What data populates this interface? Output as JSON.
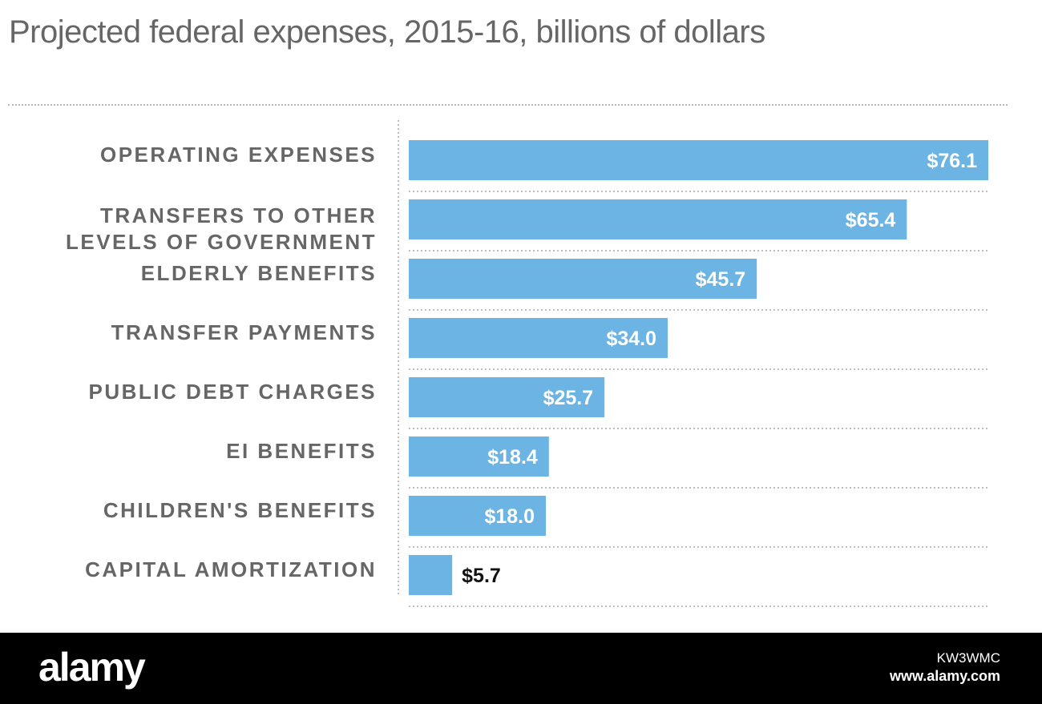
{
  "chart_data": {
    "type": "bar",
    "orientation": "horizontal",
    "title": "Projected federal expenses, 2015-16, billions of dollars",
    "categories": [
      [
        "OPERATING EXPENSES"
      ],
      [
        "TRANSFERS TO OTHER",
        "LEVELS OF GOVERNMENT"
      ],
      [
        "ELDERLY BENEFITS"
      ],
      [
        "TRANSFER PAYMENTS"
      ],
      [
        "PUBLIC DEBT CHARGES"
      ],
      [
        "EI BENEFITS"
      ],
      [
        "CHILDREN'S BENEFITS"
      ],
      [
        "CAPITAL AMORTIZATION"
      ]
    ],
    "values": [
      76.1,
      65.4,
      45.7,
      34.0,
      25.7,
      18.4,
      18.0,
      5.7
    ],
    "value_labels": [
      "$76.1",
      "$65.4",
      "$45.7",
      "$34.0",
      "$25.7",
      "$18.4",
      "$18.0",
      "$5.7"
    ],
    "xlim": [
      0,
      76.1
    ],
    "bar_color": "#6cb4e4",
    "grid": "dotted row separators"
  },
  "footer": {
    "brand": "alamy",
    "image_id": "KW3WMC",
    "site": "www.alamy.com"
  }
}
